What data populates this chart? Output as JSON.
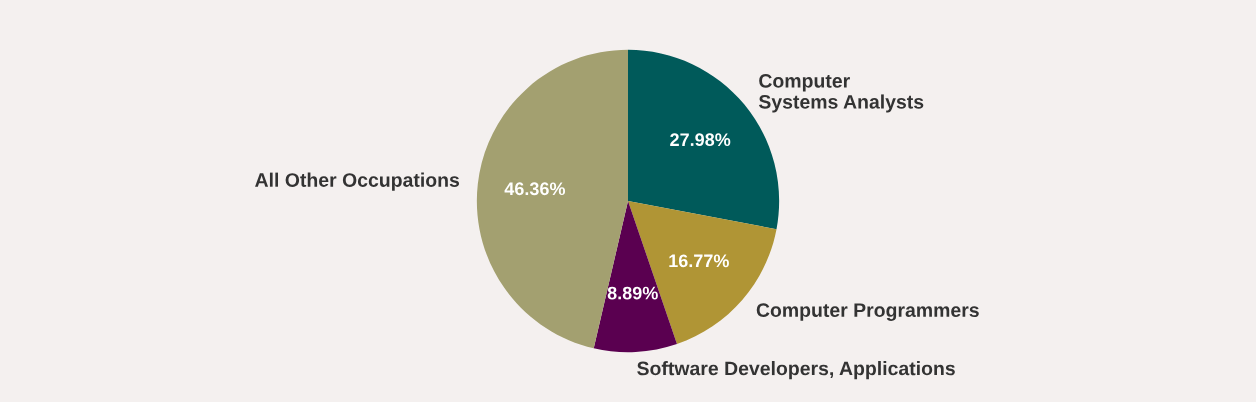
{
  "chart_data": {
    "type": "pie",
    "categories": [
      "Computer\nSystems Analysts",
      "Computer Programmers",
      "Software Developers, Applications",
      "All Other Occupations"
    ],
    "values": [
      27.98,
      16.77,
      8.89,
      46.36
    ],
    "colors": [
      "#005a5a",
      "#b09535",
      "#5a0050",
      "#a3a070"
    ],
    "value_labels": [
      "27.98%",
      "16.77%",
      "8.89%",
      "46.36%"
    ]
  }
}
